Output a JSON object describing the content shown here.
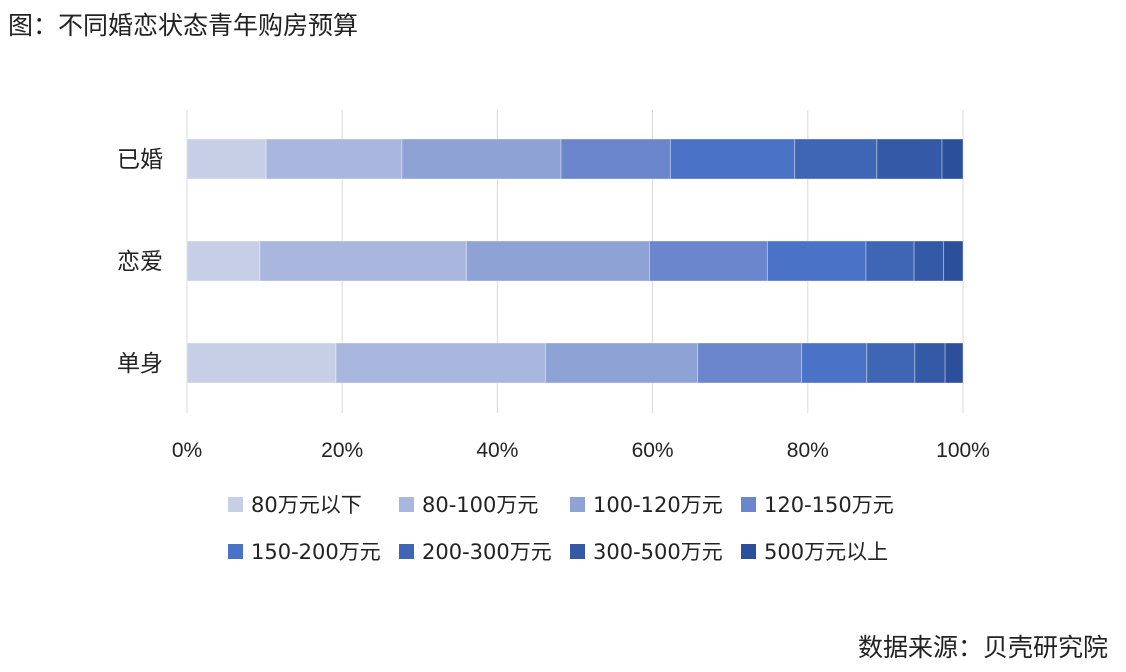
{
  "title": "图：不同婚恋状态青年购房预算",
  "source": "数据来源：贝壳研究院",
  "chart_data": {
    "type": "bar",
    "orientation": "horizontal",
    "stacked": "percent",
    "categories": [
      "已婚",
      "恋爱",
      "单身"
    ],
    "xlim": [
      0,
      100
    ],
    "x_ticks": [
      "0%",
      "20%",
      "40%",
      "60%",
      "80%",
      "100%"
    ],
    "grid": true,
    "legend_position": "bottom",
    "series": [
      {
        "name": "80万元以下",
        "color": "#c7cfe7",
        "values": [
          10.2,
          9.4,
          19.2
        ]
      },
      {
        "name": "80-100万元",
        "color": "#a9b7de",
        "values": [
          17.5,
          26.6,
          27.0
        ]
      },
      {
        "name": "100-120万元",
        "color": "#8ea2d6",
        "values": [
          20.5,
          23.6,
          19.6
        ]
      },
      {
        "name": "120-150万元",
        "color": "#6b86cc",
        "values": [
          14.1,
          15.2,
          13.4
        ]
      },
      {
        "name": "150-200万元",
        "color": "#4a72c6",
        "values": [
          16.0,
          12.7,
          8.4
        ]
      },
      {
        "name": "200-300万元",
        "color": "#3e66b4",
        "values": [
          10.6,
          6.2,
          6.2
        ]
      },
      {
        "name": "300-500万元",
        "color": "#3459a6",
        "values": [
          8.4,
          3.8,
          3.9
        ]
      },
      {
        "name": "500万元以上",
        "color": "#2b4f9a",
        "values": [
          2.7,
          2.5,
          2.3
        ]
      }
    ]
  }
}
